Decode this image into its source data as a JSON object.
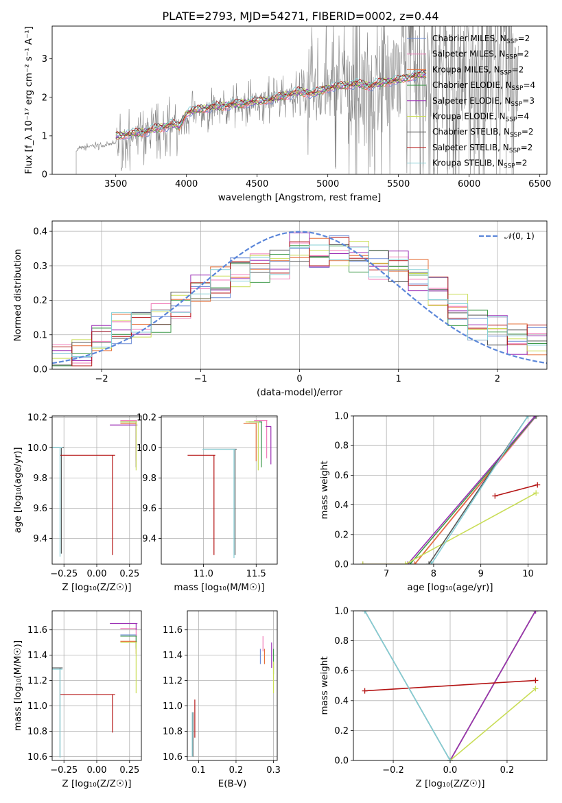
{
  "figure": {
    "title": "PLATE=2793, MJD=54271, FIBERID=0002, z=0.44"
  },
  "model_colors": {
    "Chabrier MILES": "#6b8bd6",
    "Salpeter MILES": "#f07ab8",
    "Kroupa MILES": "#e5703a",
    "Chabrier ELODIE": "#3f9a4a",
    "Salpeter ELODIE": "#9b2fb5",
    "Kroupa ELODIE": "#c9dd57",
    "Chabrier STELIB": "#555555",
    "Salpeter STELIB": "#b41414",
    "Kroupa STELIB": "#84cfd6"
  },
  "chart_data": [
    {
      "id": "spectrum",
      "type": "line",
      "title": "PLATE=2793, MJD=54271, FIBERID=0002, z=0.44",
      "xlabel": "wavelength [Angstrom, rest frame]",
      "ylabel": "Flux [f_λ 10⁻¹⁷ erg cm⁻² s⁻¹ A⁻¹]",
      "xlim": [
        3050,
        6550
      ],
      "ylim": [
        0,
        3.85
      ],
      "xticks": [
        "3500",
        "4000",
        "4500",
        "5000",
        "5500",
        "6000",
        "6500"
      ],
      "yticks": [
        "0",
        "1",
        "2",
        "3"
      ],
      "grid": false,
      "legend_position": "top-right",
      "legend": [
        {
          "label": "Chabrier MILES, N",
          "sub": "SSP",
          "tail": "=2",
          "color": "#6b8bd6"
        },
        {
          "label": "Salpeter MILES, N",
          "sub": "SSP",
          "tail": "=2",
          "color": "#f07ab8"
        },
        {
          "label": "Kroupa MILES, N",
          "sub": "SSP",
          "tail": "=2",
          "color": "#e5703a"
        },
        {
          "label": "Chabrier ELODIE, N",
          "sub": "SSP",
          "tail": "=4",
          "color": "#3f9a4a"
        },
        {
          "label": "Salpeter ELODIE, N",
          "sub": "SSP",
          "tail": "=3",
          "color": "#9b2fb5"
        },
        {
          "label": "Kroupa ELODIE, N",
          "sub": "SSP",
          "tail": "=4",
          "color": "#c9dd57"
        },
        {
          "label": "Chabrier STELIB, N",
          "sub": "SSP",
          "tail": "=2",
          "color": "#555555"
        },
        {
          "label": "Salpeter STELIB, N",
          "sub": "SSP",
          "tail": "=2",
          "color": "#b41414"
        },
        {
          "label": "Kroupa STELIB, N",
          "sub": "SSP",
          "tail": "=2",
          "color": "#84cfd6"
        }
      ],
      "data_series": {
        "name": "observed spectrum",
        "color": "#808080",
        "x": [
          3220,
          3300,
          3400,
          3500,
          3600,
          3700,
          3800,
          3900,
          3950,
          4000,
          4100,
          4200,
          4300,
          4400,
          4500,
          4600,
          4700,
          4800,
          4900,
          5000,
          5100,
          5200,
          5300,
          5400,
          5500,
          5600,
          5700,
          5800,
          5900,
          6000,
          6100,
          6200,
          6300
        ],
        "y": [
          0.65,
          0.72,
          0.75,
          0.8,
          0.9,
          1.05,
          1.1,
          1.25,
          1.2,
          1.5,
          1.6,
          1.7,
          1.8,
          1.85,
          1.9,
          1.95,
          2.0,
          2.15,
          2.05,
          2.2,
          2.25,
          2.3,
          2.2,
          2.35,
          2.4,
          2.55,
          2.6,
          2.7,
          2.75,
          2.8,
          2.9,
          3.0,
          3.1
        ]
      },
      "model_series": {
        "name": "best-fit models",
        "x": [
          3500,
          3600,
          3700,
          3800,
          3900,
          3950,
          4000,
          4100,
          4200,
          4300,
          4400,
          4500,
          4600,
          4700,
          4800,
          4900,
          5000,
          5100,
          5200,
          5300,
          5400,
          5500,
          5600,
          5700
        ],
        "y": [
          1.0,
          1.05,
          1.1,
          1.2,
          1.3,
          1.25,
          1.6,
          1.7,
          1.75,
          1.8,
          1.85,
          1.9,
          1.95,
          2.05,
          2.15,
          2.1,
          2.25,
          2.3,
          2.35,
          2.3,
          2.4,
          2.45,
          2.55,
          2.6
        ]
      }
    },
    {
      "id": "residuals",
      "type": "line",
      "xlabel": "(data-model)/error",
      "ylabel": "Normed distribution",
      "xlim": [
        -2.5,
        2.5
      ],
      "ylim": [
        0,
        0.43
      ],
      "xticks": [
        "−2",
        "−1",
        "0",
        "1",
        "2"
      ],
      "yticks": [
        "0.0",
        "0.1",
        "0.2",
        "0.3",
        "0.4"
      ],
      "grid": true,
      "legend_position": "top-right",
      "legend": [
        {
          "label": "𝒩(0, 1)",
          "color": "#5b86d9"
        }
      ],
      "curve": {
        "name": "𝒩(0, 1)",
        "mean": 0,
        "sigma": 1
      },
      "bins": [
        -2.5,
        -2.3,
        -2.1,
        -1.9,
        -1.7,
        -1.5,
        -1.3,
        -1.1,
        -0.9,
        -0.7,
        -0.5,
        -0.3,
        -0.1,
        0.1,
        0.3,
        0.5,
        0.7,
        0.9,
        1.1,
        1.3,
        1.5,
        1.7,
        1.9,
        2.1,
        2.3,
        2.5
      ],
      "hist": [
        0.03,
        0.05,
        0.09,
        0.12,
        0.13,
        0.15,
        0.19,
        0.23,
        0.25,
        0.28,
        0.3,
        0.31,
        0.35,
        0.33,
        0.34,
        0.33,
        0.31,
        0.3,
        0.27,
        0.22,
        0.17,
        0.13,
        0.12,
        0.09,
        0.08
      ]
    },
    {
      "id": "age-vs-Z",
      "type": "scatter",
      "xlabel": "Z [log₁₀(Z/Z☉)]",
      "ylabel": "age  [log₁₀(age/yr)]",
      "xlim": [
        -0.34,
        0.34
      ],
      "ylim": [
        9.23,
        10.21
      ],
      "xticks": [
        "−0.25",
        "0.00",
        "0.25"
      ],
      "yticks": [
        "9.4",
        "9.6",
        "9.8",
        "10.0",
        "10.2"
      ],
      "grid": true,
      "points": [
        {
          "model": "Chabrier MILES",
          "x": 0.3,
          "y": 10.17,
          "xerr": 0.12,
          "yerr": 0.25
        },
        {
          "model": "Salpeter MILES",
          "x": 0.3,
          "y": 10.18,
          "xerr": 0.12,
          "yerr": 0.25
        },
        {
          "model": "Kroupa MILES",
          "x": 0.3,
          "y": 10.16,
          "xerr": 0.12,
          "yerr": 0.25
        },
        {
          "model": "Chabrier ELODIE",
          "x": 0.3,
          "y": 10.17,
          "xerr": 0.12,
          "yerr": 0.3
        },
        {
          "model": "Salpeter ELODIE",
          "x": 0.3,
          "y": 10.15,
          "xerr": 0.2,
          "yerr": 0.28
        },
        {
          "model": "Kroupa ELODIE",
          "x": 0.3,
          "y": 10.17,
          "xerr": 0.12,
          "yerr": 0.32
        },
        {
          "model": "Chabrier STELIB",
          "x": -0.27,
          "y": 10.0,
          "xerr": 0.4,
          "yerr": 0.7
        },
        {
          "model": "Salpeter STELIB",
          "x": 0.12,
          "y": 9.95,
          "xerr": 0.4,
          "yerr": 0.66
        },
        {
          "model": "Kroupa STELIB",
          "x": -0.28,
          "y": 10.0,
          "xerr": 0.38,
          "yerr": 0.72
        }
      ]
    },
    {
      "id": "age-vs-mass",
      "type": "scatter",
      "xlabel": "mass [log₁₀(M/M☉)]",
      "xlim": [
        10.6,
        11.7
      ],
      "ylim": [
        9.23,
        10.21
      ],
      "xticks": [
        "11.0",
        "11.5"
      ],
      "yticks": [
        "9.4",
        "9.6",
        "9.8",
        "10.0",
        "10.2"
      ],
      "grid": true,
      "points": [
        {
          "model": "Chabrier MILES",
          "x": 11.55,
          "y": 10.17,
          "xerr": 0.12,
          "yerr": 0.25
        },
        {
          "model": "Salpeter MILES",
          "x": 11.6,
          "y": 10.18,
          "xerr": 0.12,
          "yerr": 0.25
        },
        {
          "model": "Kroupa MILES",
          "x": 11.5,
          "y": 10.16,
          "xerr": 0.12,
          "yerr": 0.25
        },
        {
          "model": "Chabrier ELODIE",
          "x": 11.55,
          "y": 10.17,
          "xerr": 0.12,
          "yerr": 0.3
        },
        {
          "model": "Salpeter ELODIE",
          "x": 11.64,
          "y": 10.14,
          "xerr": 0.05,
          "yerr": 0.25
        },
        {
          "model": "Kroupa ELODIE",
          "x": 11.52,
          "y": 10.17,
          "xerr": 0.12,
          "yerr": 0.32
        },
        {
          "model": "Chabrier STELIB",
          "x": 11.3,
          "y": 9.99,
          "xerr": 0.3,
          "yerr": 0.7
        },
        {
          "model": "Salpeter STELIB",
          "x": 11.1,
          "y": 9.95,
          "xerr": 0.25,
          "yerr": 0.66
        },
        {
          "model": "Kroupa STELIB",
          "x": 11.29,
          "y": 9.99,
          "xerr": 0.3,
          "yerr": 0.72
        }
      ]
    },
    {
      "id": "mass-weight-vs-age",
      "type": "line",
      "xlabel": "age  [log₁₀(age/yr)]",
      "ylabel": "mass weight",
      "xlim": [
        6.3,
        10.4
      ],
      "ylim": [
        0,
        1.0
      ],
      "xticks": [
        "7",
        "8",
        "9",
        "10"
      ],
      "yticks": [
        "0.0",
        "0.2",
        "0.4",
        "0.6",
        "0.8",
        "1.0"
      ],
      "grid": true,
      "series": [
        {
          "model": "Chabrier MILES",
          "x": [
            7.6,
            10.17
          ],
          "y": [
            0.0,
            1.0
          ]
        },
        {
          "model": "Salpeter MILES",
          "x": [
            7.6,
            10.18
          ],
          "y": [
            0.0,
            1.0
          ]
        },
        {
          "model": "Kroupa MILES",
          "x": [
            7.6,
            10.16
          ],
          "y": [
            0.0,
            1.0
          ]
        },
        {
          "model": "Chabrier ELODIE",
          "x": [
            7.5,
            10.17
          ],
          "y": [
            0.0,
            1.0
          ]
        },
        {
          "model": "Salpeter ELODIE",
          "x": [
            6.5,
            7.45,
            10.15
          ],
          "y": [
            0.0,
            0.0,
            1.0
          ]
        },
        {
          "model": "Kroupa ELODIE",
          "x": [
            6.5,
            7.4,
            10.17
          ],
          "y": [
            0.0,
            0.0,
            0.48
          ]
        },
        {
          "model": "Chabrier STELIB",
          "x": [
            7.9,
            10.0
          ],
          "y": [
            0.0,
            1.0
          ]
        },
        {
          "model": "Salpeter STELIB",
          "x": [
            9.3,
            10.2
          ],
          "y": [
            0.46,
            0.535
          ]
        },
        {
          "model": "Kroupa STELIB",
          "x": [
            7.95,
            10.0
          ],
          "y": [
            0.0,
            1.0
          ]
        }
      ]
    },
    {
      "id": "mass-vs-Z",
      "type": "scatter",
      "xlabel": "Z [log₁₀(Z/Z☉)]",
      "ylabel": "mass [log₁₀(M/M☉)]",
      "xlim": [
        -0.34,
        0.34
      ],
      "ylim": [
        10.57,
        11.75
      ],
      "xticks": [
        "−0.25",
        "0.00",
        "0.25"
      ],
      "yticks": [
        "10.6",
        "10.8",
        "11.0",
        "11.2",
        "11.4",
        "11.6"
      ],
      "grid": true,
      "points": [
        {
          "model": "Chabrier MILES",
          "x": 0.3,
          "y": 11.56,
          "xerr": 0.12,
          "yerr": 0.1
        },
        {
          "model": "Salpeter MILES",
          "x": 0.3,
          "y": 11.61,
          "xerr": 0.12,
          "yerr": 0.08
        },
        {
          "model": "Kroupa MILES",
          "x": 0.3,
          "y": 11.51,
          "xerr": 0.12,
          "yerr": 0.1
        },
        {
          "model": "Chabrier ELODIE",
          "x": 0.3,
          "y": 11.55,
          "xerr": 0.12,
          "yerr": 0.1
        },
        {
          "model": "Salpeter ELODIE",
          "x": 0.3,
          "y": 11.65,
          "xerr": 0.2,
          "yerr": 0.05
        },
        {
          "model": "Kroupa ELODIE",
          "x": 0.3,
          "y": 11.5,
          "xerr": 0.12,
          "yerr": 0.4
        },
        {
          "model": "Chabrier STELIB",
          "x": -0.28,
          "y": 11.3,
          "xerr": 0.4,
          "yerr": 0.7
        },
        {
          "model": "Salpeter STELIB",
          "x": 0.12,
          "y": 11.09,
          "xerr": 0.4,
          "yerr": 0.3
        },
        {
          "model": "Kroupa STELIB",
          "x": -0.28,
          "y": 11.29,
          "xerr": 0.38,
          "yerr": 0.7
        }
      ]
    },
    {
      "id": "mass-vs-EBV",
      "type": "scatter",
      "xlabel": "E(B-V)",
      "xlim": [
        0.07,
        0.31
      ],
      "ylim": [
        10.57,
        11.75
      ],
      "xticks": [
        "0.1",
        "0.2",
        "0.3"
      ],
      "yticks": [
        "10.6",
        "10.8",
        "11.0",
        "11.2",
        "11.4",
        "11.6"
      ],
      "grid": true,
      "points": [
        {
          "model": "Chabrier MILES",
          "x": 0.265,
          "y": 11.45,
          "xerr": 0,
          "yerr": 0.12
        },
        {
          "model": "Salpeter MILES",
          "x": 0.272,
          "y": 11.55,
          "xerr": 0,
          "yerr": 0.12
        },
        {
          "model": "Kroupa MILES",
          "x": 0.276,
          "y": 11.45,
          "xerr": 0,
          "yerr": 0.12
        },
        {
          "model": "Chabrier ELODIE",
          "x": 0.3,
          "y": 11.45,
          "xerr": 0,
          "yerr": 0.2
        },
        {
          "model": "Salpeter ELODIE",
          "x": 0.295,
          "y": 11.5,
          "xerr": 0,
          "yerr": 0.2
        },
        {
          "model": "Kroupa ELODIE",
          "x": 0.3,
          "y": 11.35,
          "xerr": 0,
          "yerr": 0.25
        },
        {
          "model": "Chabrier STELIB",
          "x": 0.085,
          "y": 10.95,
          "xerr": 0,
          "yerr": 0.35
        },
        {
          "model": "Salpeter STELIB",
          "x": 0.09,
          "y": 11.05,
          "xerr": 0,
          "yerr": 0.3
        },
        {
          "model": "Kroupa STELIB",
          "x": 0.083,
          "y": 10.95,
          "xerr": 0,
          "yerr": 0.35
        }
      ]
    },
    {
      "id": "mass-weight-vs-Z",
      "type": "line",
      "xlabel": "Z [log₁₀(Z/Z☉)]",
      "ylabel": "mass weight",
      "xlim": [
        -0.34,
        0.34
      ],
      "ylim": [
        0,
        1.0
      ],
      "xticks": [
        "−0.2",
        "0.0",
        "0.2"
      ],
      "yticks": [
        "0.0",
        "0.2",
        "0.4",
        "0.6",
        "0.8",
        "1.0"
      ],
      "grid": true,
      "series": [
        {
          "model": "Chabrier MILES",
          "x": [
            0.0,
            0.3
          ],
          "y": [
            0.0,
            1.0
          ]
        },
        {
          "model": "Salpeter MILES",
          "x": [
            0.0,
            0.3
          ],
          "y": [
            0.0,
            1.0
          ]
        },
        {
          "model": "Kroupa MILES",
          "x": [
            0.0,
            0.3
          ],
          "y": [
            0.0,
            1.0
          ]
        },
        {
          "model": "Chabrier ELODIE",
          "x": [
            0.0,
            0.3
          ],
          "y": [
            0.0,
            1.0
          ]
        },
        {
          "model": "Salpeter ELODIE",
          "x": [
            0.0,
            0.3
          ],
          "y": [
            0.0,
            1.0
          ]
        },
        {
          "model": "Kroupa ELODIE",
          "x": [
            0.0,
            0.3
          ],
          "y": [
            0.0,
            0.48
          ]
        },
        {
          "model": "Chabrier STELIB",
          "x": [
            -0.3,
            0.0
          ],
          "y": [
            1.0,
            0.0
          ]
        },
        {
          "model": "Salpeter STELIB",
          "x": [
            -0.3,
            0.3
          ],
          "y": [
            0.465,
            0.535
          ]
        },
        {
          "model": "Kroupa STELIB",
          "x": [
            -0.3,
            0.0
          ],
          "y": [
            1.0,
            0.0
          ]
        }
      ]
    }
  ]
}
